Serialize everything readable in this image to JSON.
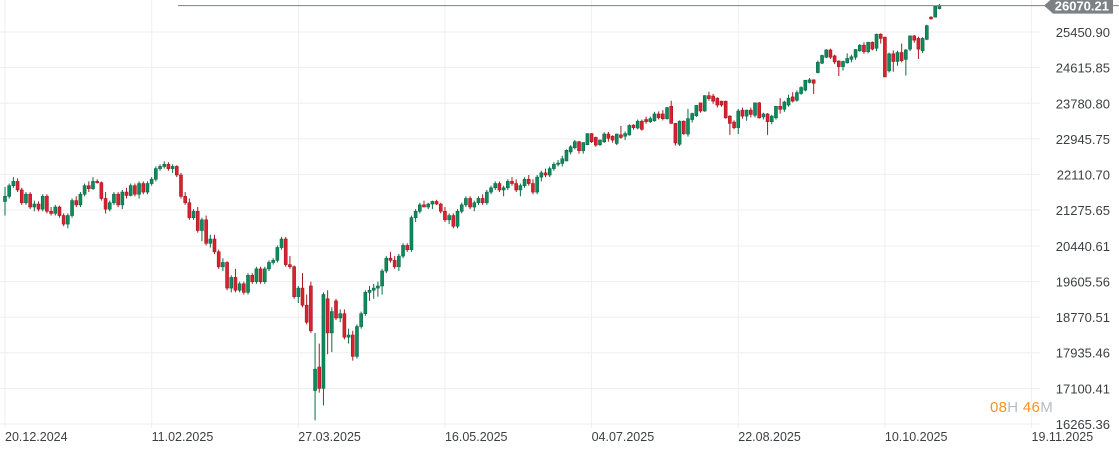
{
  "chart_data": {
    "type": "candlestick",
    "title": "",
    "current_price": "26070.21",
    "current_value": 26070.21,
    "ohlc_format": [
      "open",
      "high",
      "low",
      "close"
    ],
    "candles": [
      [
        21480,
        21820,
        21150,
        21600
      ],
      [
        21600,
        21900,
        21550,
        21850
      ],
      [
        21850,
        22050,
        21800,
        21950
      ],
      [
        21950,
        22020,
        21700,
        21750
      ],
      [
        21750,
        21800,
        21400,
        21450
      ],
      [
        21450,
        21700,
        21400,
        21650
      ],
      [
        21650,
        21700,
        21300,
        21350
      ],
      [
        21350,
        21500,
        21250,
        21420
      ],
      [
        21420,
        21480,
        21250,
        21300
      ],
      [
        21300,
        21650,
        21250,
        21600
      ],
      [
        21600,
        21650,
        21200,
        21250
      ],
      [
        21250,
        21350,
        21150,
        21200
      ],
      [
        21200,
        21400,
        21150,
        21350
      ],
      [
        21350,
        21380,
        21100,
        21150
      ],
      [
        21150,
        21200,
        20900,
        20950
      ],
      [
        20950,
        21200,
        20850,
        21150
      ],
      [
        21150,
        21550,
        21100,
        21500
      ],
      [
        21500,
        21600,
        21350,
        21400
      ],
      [
        21400,
        21700,
        21350,
        21650
      ],
      [
        21650,
        21900,
        21600,
        21850
      ],
      [
        21850,
        21950,
        21700,
        21780
      ],
      [
        21780,
        22050,
        21750,
        21950
      ],
      [
        21950,
        22000,
        21900,
        21920
      ],
      [
        21920,
        21950,
        21500,
        21550
      ],
      [
        21550,
        21700,
        21200,
        21300
      ],
      [
        21300,
        21500,
        21250,
        21450
      ],
      [
        21450,
        21700,
        21400,
        21650
      ],
      [
        21650,
        21700,
        21350,
        21400
      ],
      [
        21400,
        21750,
        21300,
        21700
      ],
      [
        21700,
        21800,
        21550,
        21620
      ],
      [
        21620,
        21900,
        21600,
        21850
      ],
      [
        21850,
        21900,
        21600,
        21650
      ],
      [
        21650,
        21950,
        21550,
        21900
      ],
      [
        21900,
        21950,
        21650,
        21700
      ],
      [
        21700,
        21950,
        21650,
        21900
      ],
      [
        21900,
        22050,
        21850,
        22000
      ],
      [
        22000,
        22300,
        21950,
        22250
      ],
      [
        22250,
        22350,
        22200,
        22300
      ],
      [
        22300,
        22420,
        22250,
        22350
      ],
      [
        22350,
        22400,
        22200,
        22250
      ],
      [
        22250,
        22350,
        22150,
        22300
      ],
      [
        22300,
        22330,
        22050,
        22100
      ],
      [
        22100,
        22150,
        21550,
        21600
      ],
      [
        21600,
        21700,
        21400,
        21450
      ],
      [
        21450,
        21550,
        21050,
        21100
      ],
      [
        21100,
        21300,
        21050,
        21250
      ],
      [
        21250,
        21350,
        20750,
        20800
      ],
      [
        20800,
        21100,
        20550,
        21050
      ],
      [
        21050,
        21150,
        20450,
        20500
      ],
      [
        20500,
        20700,
        20400,
        20600
      ],
      [
        20600,
        20700,
        20250,
        20300
      ],
      [
        20300,
        20350,
        19900,
        19950
      ],
      [
        19950,
        20150,
        19850,
        20050
      ],
      [
        20050,
        20080,
        19400,
        19450
      ],
      [
        19450,
        19750,
        19350,
        19700
      ],
      [
        19700,
        19900,
        19350,
        19400
      ],
      [
        19400,
        19600,
        19350,
        19550
      ],
      [
        19550,
        19600,
        19300,
        19350
      ],
      [
        19350,
        19800,
        19300,
        19750
      ],
      [
        19750,
        19800,
        19550,
        19600
      ],
      [
        19600,
        19950,
        19550,
        19900
      ],
      [
        19900,
        19950,
        19550,
        19600
      ],
      [
        19600,
        19950,
        19550,
        19900
      ],
      [
        19900,
        20100,
        19850,
        20050
      ],
      [
        20050,
        20150,
        20000,
        20100
      ],
      [
        20100,
        20450,
        20050,
        20400
      ],
      [
        20400,
        20650,
        20350,
        20600
      ],
      [
        20600,
        20650,
        19950,
        20000
      ],
      [
        20000,
        20200,
        19900,
        19950
      ],
      [
        19950,
        19980,
        19200,
        19250
      ],
      [
        19250,
        19500,
        19100,
        19450
      ],
      [
        19450,
        19800,
        19000,
        19050
      ],
      [
        19050,
        19300,
        18600,
        18650
      ],
      [
        19500,
        19600,
        18400,
        18450
      ],
      [
        17050,
        18400,
        16350,
        17550
      ],
      [
        17600,
        18150,
        17000,
        17100
      ],
      [
        17100,
        19350,
        16700,
        19300
      ],
      [
        19200,
        19400,
        17900,
        18400
      ],
      [
        18400,
        19000,
        17950,
        18900
      ],
      [
        19150,
        19200,
        18700,
        18750
      ],
      [
        18750,
        18950,
        18650,
        18850
      ],
      [
        18850,
        18950,
        18250,
        18300
      ],
      [
        18300,
        18500,
        18150,
        18350
      ],
      [
        18350,
        18450,
        17750,
        17850
      ],
      [
        17850,
        18600,
        17800,
        18550
      ],
      [
        18550,
        18900,
        18500,
        18850
      ],
      [
        18850,
        19400,
        18800,
        19350
      ],
      [
        19350,
        19500,
        19150,
        19400
      ],
      [
        19400,
        19550,
        19200,
        19450
      ],
      [
        19450,
        19600,
        19250,
        19500
      ],
      [
        19500,
        19900,
        19300,
        19850
      ],
      [
        19850,
        20200,
        19800,
        20150
      ],
      [
        20150,
        20300,
        20050,
        20100
      ],
      [
        20100,
        20200,
        19900,
        19950
      ],
      [
        19950,
        20250,
        19850,
        20200
      ],
      [
        20200,
        20500,
        20150,
        20450
      ],
      [
        20450,
        20500,
        20300,
        20350
      ],
      [
        20350,
        21150,
        20300,
        21100
      ],
      [
        21100,
        21300,
        21000,
        21250
      ],
      [
        21250,
        21450,
        21200,
        21400
      ],
      [
        21400,
        21500,
        21350,
        21350
      ],
      [
        21350,
        21450,
        21300,
        21420
      ],
      [
        21420,
        21500,
        21300,
        21480
      ],
      [
        21480,
        21520,
        21400,
        21420
      ],
      [
        21420,
        21450,
        21200,
        21250
      ],
      [
        21250,
        21350,
        21000,
        21050
      ],
      [
        21050,
        21200,
        20950,
        21150
      ],
      [
        21150,
        21200,
        20850,
        20900
      ],
      [
        20900,
        21300,
        20850,
        21250
      ],
      [
        21250,
        21450,
        21200,
        21400
      ],
      [
        21400,
        21600,
        21350,
        21550
      ],
      [
        21550,
        21600,
        21300,
        21350
      ],
      [
        21350,
        21500,
        21250,
        21450
      ],
      [
        21450,
        21600,
        21400,
        21550
      ],
      [
        21550,
        21650,
        21400,
        21450
      ],
      [
        21450,
        21750,
        21400,
        21700
      ],
      [
        21700,
        21850,
        21650,
        21800
      ],
      [
        21800,
        21950,
        21750,
        21900
      ],
      [
        21900,
        21950,
        21700,
        21750
      ],
      [
        21750,
        21850,
        21600,
        21800
      ],
      [
        21800,
        22000,
        21750,
        21950
      ],
      [
        21950,
        22050,
        21850,
        21900
      ],
      [
        21900,
        22000,
        21700,
        21750
      ],
      [
        21750,
        21900,
        21600,
        21850
      ],
      [
        21850,
        22050,
        21800,
        22000
      ],
      [
        22000,
        22100,
        21850,
        21900
      ],
      [
        21900,
        22000,
        21650,
        21700
      ],
      [
        21700,
        22100,
        21650,
        22050
      ],
      [
        22050,
        22200,
        21950,
        22150
      ],
      [
        22150,
        22250,
        22050,
        22100
      ],
      [
        22100,
        22300,
        22050,
        22250
      ],
      [
        22250,
        22400,
        22200,
        22350
      ],
      [
        22350,
        22450,
        22300,
        22380
      ],
      [
        22370,
        22550,
        22300,
        22480
      ],
      [
        22430,
        22700,
        22420,
        22680
      ],
      [
        22640,
        22800,
        22580,
        22760
      ],
      [
        22740,
        22920,
        22700,
        22880
      ],
      [
        22880,
        22900,
        22600,
        22670
      ],
      [
        22670,
        22870,
        22600,
        22860
      ],
      [
        22810,
        23070,
        22800,
        23070
      ],
      [
        23070,
        23080,
        22850,
        22880
      ],
      [
        22980,
        23000,
        22760,
        22800
      ],
      [
        22810,
        22930,
        22780,
        22920
      ],
      [
        22880,
        23100,
        22850,
        23060
      ],
      [
        23060,
        23110,
        22880,
        22960
      ],
      [
        23010,
        23030,
        22860,
        22920
      ],
      [
        22840,
        23070,
        22800,
        23060
      ],
      [
        23040,
        23250,
        22950,
        22980
      ],
      [
        23010,
        23120,
        22920,
        23070
      ],
      [
        23040,
        23290,
        23020,
        23260
      ],
      [
        23270,
        23290,
        23160,
        23210
      ],
      [
        23200,
        23400,
        23170,
        23360
      ],
      [
        23360,
        23400,
        23140,
        23170
      ],
      [
        23400,
        23470,
        23300,
        23350
      ],
      [
        23350,
        23470,
        23320,
        23420
      ],
      [
        23370,
        23580,
        23350,
        23530
      ],
      [
        23530,
        23590,
        23400,
        23440
      ],
      [
        23530,
        23620,
        23380,
        23420
      ],
      [
        23420,
        23690,
        23400,
        23680
      ],
      [
        23710,
        23840,
        23300,
        23310
      ],
      [
        23310,
        23320,
        22790,
        22850
      ],
      [
        22820,
        23380,
        22780,
        23360
      ],
      [
        23360,
        23380,
        23040,
        23070
      ],
      [
        23060,
        23650,
        23000,
        23420
      ],
      [
        23400,
        23560,
        23330,
        23540
      ],
      [
        23490,
        23740,
        23460,
        23730
      ],
      [
        23790,
        23800,
        23560,
        23600
      ],
      [
        23600,
        23970,
        23580,
        23960
      ],
      [
        23960,
        24050,
        23840,
        23890
      ],
      [
        23950,
        24000,
        23770,
        23830
      ],
      [
        23900,
        23920,
        23680,
        23740
      ],
      [
        23830,
        23840,
        23700,
        23740
      ],
      [
        23830,
        23840,
        23420,
        23440
      ],
      [
        23480,
        23500,
        23040,
        23310
      ],
      [
        23340,
        23380,
        23170,
        23210
      ],
      [
        23210,
        23650,
        23060,
        23600
      ],
      [
        23620,
        23680,
        23420,
        23480
      ],
      [
        23480,
        23630,
        23370,
        23620
      ],
      [
        23620,
        23680,
        23450,
        23520
      ],
      [
        23500,
        23800,
        23450,
        23790
      ],
      [
        23790,
        23810,
        23420,
        23440
      ],
      [
        23460,
        23560,
        23400,
        23530
      ],
      [
        23530,
        23550,
        23040,
        23350
      ],
      [
        23350,
        23510,
        23290,
        23480
      ],
      [
        23440,
        23720,
        23400,
        23710
      ],
      [
        23710,
        23900,
        23540,
        23640
      ],
      [
        23640,
        23840,
        23580,
        23810
      ],
      [
        23740,
        23980,
        23700,
        23900
      ],
      [
        23930,
        24040,
        23800,
        23830
      ],
      [
        23850,
        24080,
        23820,
        24030
      ],
      [
        24010,
        24180,
        23980,
        24150
      ],
      [
        24090,
        24330,
        24060,
        24320
      ],
      [
        24270,
        24370,
        24250,
        24330
      ],
      [
        24330,
        24340,
        24000,
        24250
      ],
      [
        24500,
        24780,
        24480,
        24740
      ],
      [
        24720,
        24920,
        24700,
        24900
      ],
      [
        24860,
        25050,
        24840,
        25030
      ],
      [
        25030,
        25060,
        24820,
        24860
      ],
      [
        24890,
        24920,
        24700,
        24750
      ],
      [
        24770,
        24790,
        24420,
        24640
      ],
      [
        24640,
        24780,
        24550,
        24760
      ],
      [
        24730,
        24950,
        24710,
        24830
      ],
      [
        24810,
        24920,
        24740,
        24870
      ],
      [
        24860,
        25050,
        24800,
        25040
      ],
      [
        25010,
        25170,
        24990,
        25140
      ],
      [
        25140,
        25210,
        24940,
        24990
      ],
      [
        24990,
        25220,
        24950,
        25210
      ],
      [
        25210,
        25230,
        25020,
        25050
      ],
      [
        25070,
        25410,
        25000,
        25400
      ],
      [
        25400,
        25420,
        25180,
        25300
      ],
      [
        25330,
        25340,
        24390,
        24400
      ],
      [
        24540,
        24970,
        24500,
        24940
      ],
      [
        24940,
        25020,
        24520,
        24760
      ],
      [
        24760,
        25010,
        24660,
        24970
      ],
      [
        24970,
        25180,
        24740,
        24780
      ],
      [
        24810,
        25050,
        24430,
        25030
      ],
      [
        25050,
        25370,
        25000,
        25360
      ],
      [
        25360,
        25380,
        25200,
        25260
      ],
      [
        25300,
        25340,
        24820,
        25050
      ],
      [
        25010,
        25330,
        24960,
        25300
      ],
      [
        25280,
        25620,
        25260,
        25600
      ],
      [
        25800,
        25820,
        25740,
        25760
      ],
      [
        25800,
        26060,
        25790,
        26050
      ],
      [
        26000,
        26110,
        25980,
        26070
      ]
    ],
    "y_ticks": [
      "25450.90",
      "24615.85",
      "23780.80",
      "22945.75",
      "22110.70",
      "21275.65",
      "20440.61",
      "19605.56",
      "18770.51",
      "17935.46",
      "17100.41",
      "16265.36"
    ],
    "y_tick_values": [
      25450.9,
      24615.85,
      23780.8,
      22945.75,
      22110.7,
      21275.65,
      20440.61,
      19605.56,
      18770.51,
      17935.46,
      17100.41,
      16265.36
    ],
    "x_ticks": [
      "20.12.2024",
      "11.02.2025",
      "27.03.2025",
      "16.05.2025",
      "04.07.2025",
      "22.08.2025",
      "10.10.2025",
      "19.11.2025"
    ],
    "x_tick_every_n_candles": 35,
    "grid": true,
    "colors": {
      "up": "#0e8a5c",
      "up_border": "#0b6b47",
      "down": "#d8222f",
      "down_border": "#a81822",
      "grid": "#efefef",
      "price_line": "#7b8185",
      "price_label_bg": "#7b8185"
    }
  },
  "countdown": {
    "hours": "08",
    "hours_unit": "H",
    "minutes": "46",
    "minutes_unit": "M"
  }
}
